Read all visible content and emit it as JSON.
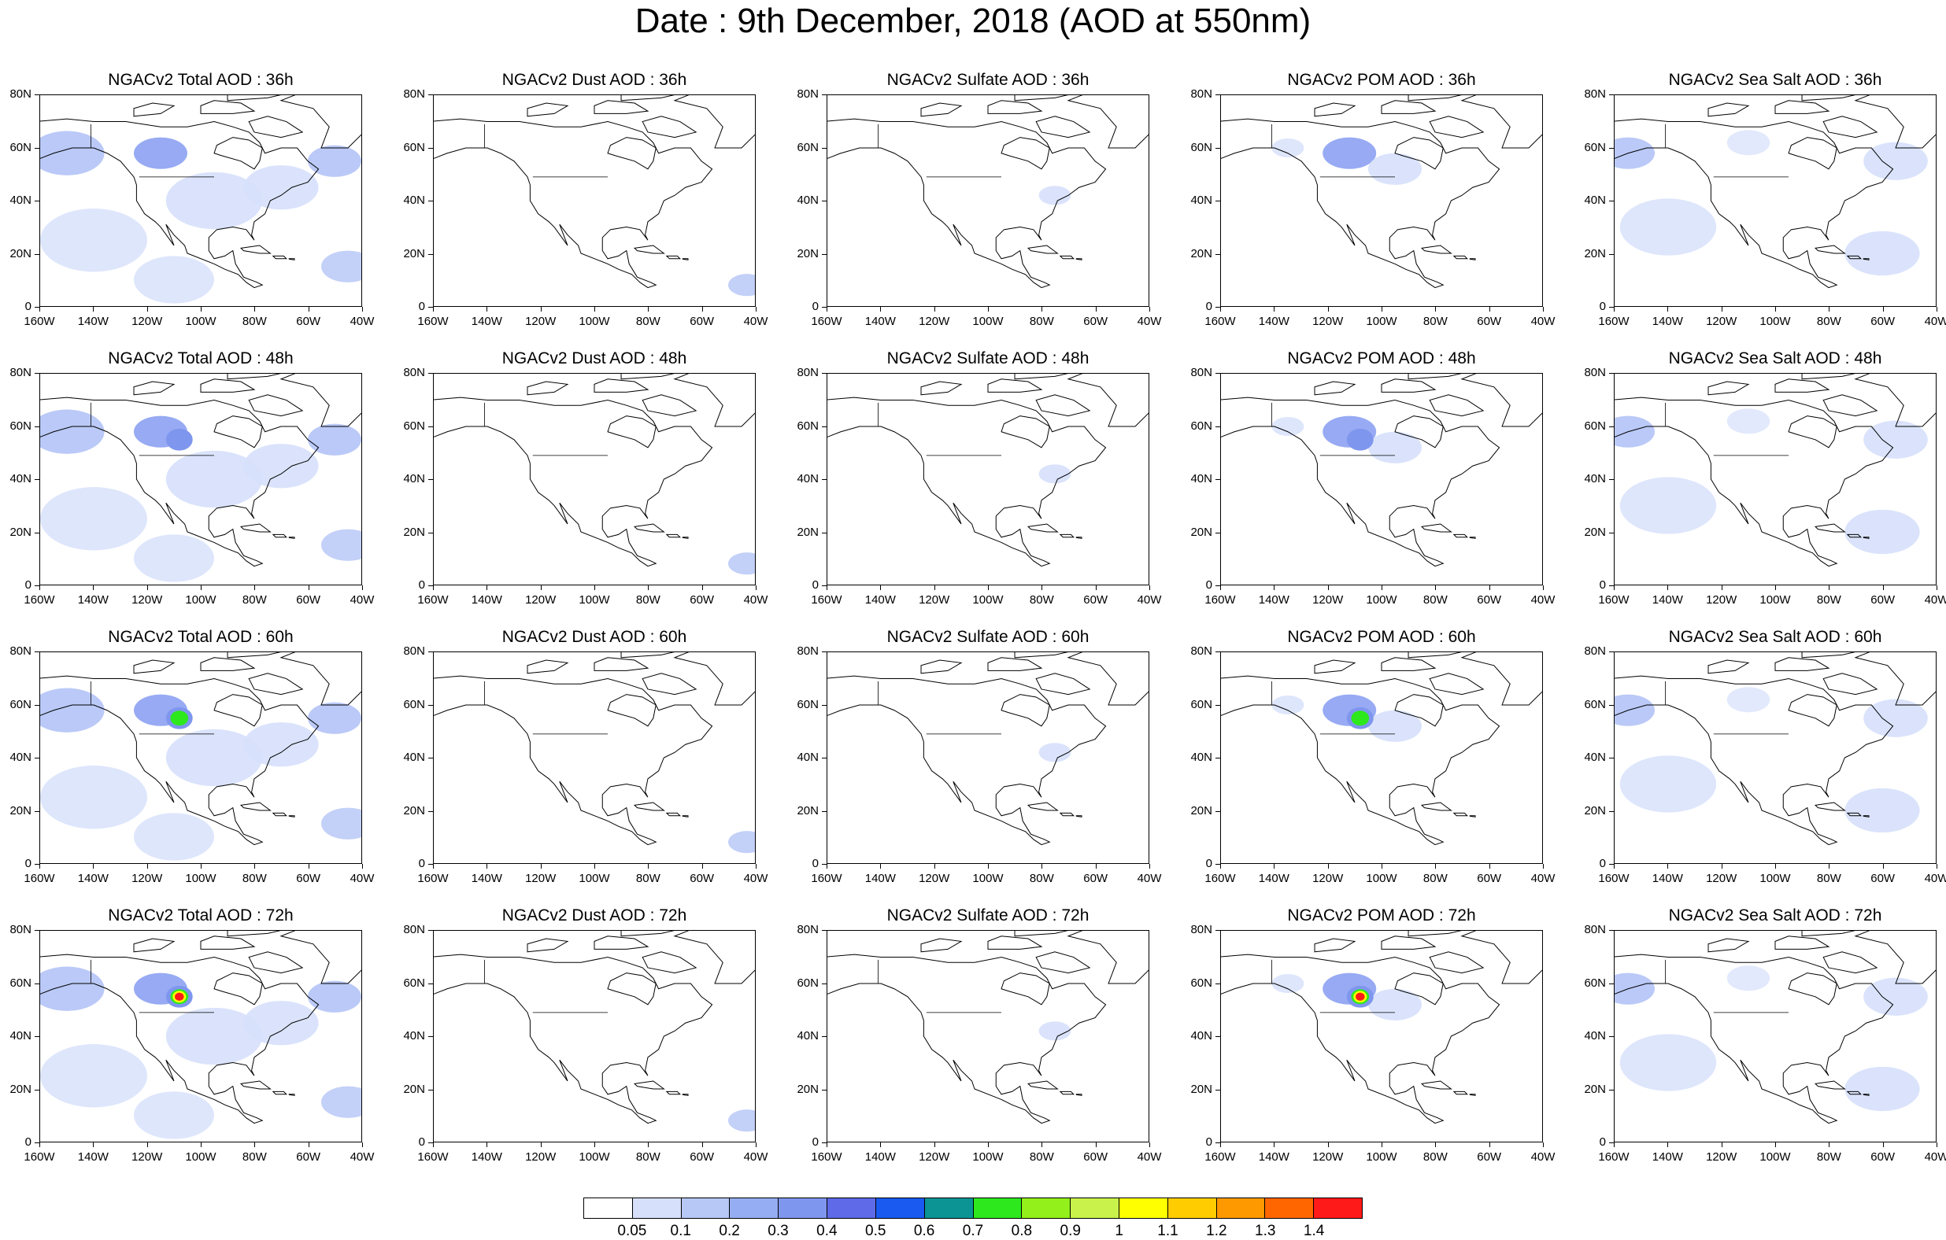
{
  "title": "Date : 9th December, 2018 (AOD at 550nm)",
  "x_axis_labels": [
    "160W",
    "140W",
    "120W",
    "100W",
    "80W",
    "60W",
    "40W"
  ],
  "y_axis_labels": [
    "80N",
    "60N",
    "40N",
    "20N",
    "0"
  ],
  "colors": {
    "land_outline": "#000000",
    "aod_low": "#d6e0fb",
    "aod_mid": "#a9bcf5",
    "aod_high": "#7d95f0"
  },
  "panels": [
    {
      "title": "NGACv2 Total AOD : 36h",
      "species": "total",
      "lead": 36
    },
    {
      "title": "NGACv2 Dust AOD : 36h",
      "species": "dust",
      "lead": 36
    },
    {
      "title": "NGACv2 Sulfate AOD : 36h",
      "species": "sulfate",
      "lead": 36
    },
    {
      "title": "NGACv2 POM AOD : 36h",
      "species": "pom",
      "lead": 36
    },
    {
      "title": "NGACv2 Sea Salt AOD : 36h",
      "species": "seasalt",
      "lead": 36
    },
    {
      "title": "NGACv2 Total AOD : 48h",
      "species": "total",
      "lead": 48
    },
    {
      "title": "NGACv2 Dust AOD : 48h",
      "species": "dust",
      "lead": 48
    },
    {
      "title": "NGACv2 Sulfate AOD : 48h",
      "species": "sulfate",
      "lead": 48
    },
    {
      "title": "NGACv2 POM AOD : 48h",
      "species": "pom",
      "lead": 48
    },
    {
      "title": "NGACv2 Sea Salt AOD : 48h",
      "species": "seasalt",
      "lead": 48
    },
    {
      "title": "NGACv2 Total AOD : 60h",
      "species": "total",
      "lead": 60
    },
    {
      "title": "NGACv2 Dust AOD : 60h",
      "species": "dust",
      "lead": 60
    },
    {
      "title": "NGACv2 Sulfate AOD : 60h",
      "species": "sulfate",
      "lead": 60
    },
    {
      "title": "NGACv2 POM AOD : 60h",
      "species": "pom",
      "lead": 60
    },
    {
      "title": "NGACv2 Sea Salt AOD : 60h",
      "species": "seasalt",
      "lead": 60
    },
    {
      "title": "NGACv2 Total AOD : 72h",
      "species": "total",
      "lead": 72
    },
    {
      "title": "NGACv2 Dust AOD : 72h",
      "species": "dust",
      "lead": 72
    },
    {
      "title": "NGACv2 Sulfate AOD : 72h",
      "species": "sulfate",
      "lead": 72
    },
    {
      "title": "NGACv2 POM AOD : 72h",
      "species": "pom",
      "lead": 72
    },
    {
      "title": "NGACv2 Sea Salt  AOD : 72h",
      "species": "seasalt",
      "lead": 72
    }
  ],
  "colorbar": {
    "labels": [
      "0.05",
      "0.1",
      "0.2",
      "0.3",
      "0.4",
      "0.5",
      "0.6",
      "0.7",
      "0.8",
      "0.9",
      "1",
      "1.1",
      "1.2",
      "1.3",
      "1.4"
    ],
    "colors": [
      "#ffffff",
      "#d6e0fb",
      "#b7c8f7",
      "#95aef3",
      "#7f96ee",
      "#5e6ae8",
      "#1a5af0",
      "#0c9494",
      "#2ee81e",
      "#93f01a",
      "#c9f24a",
      "#ffff00",
      "#ffcc00",
      "#ff9900",
      "#ff6600",
      "#ff1a1a"
    ]
  }
}
